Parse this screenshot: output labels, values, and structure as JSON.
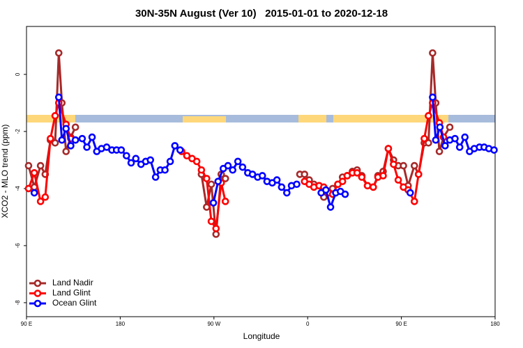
{
  "chart_data": {
    "type": "line",
    "title": "30N-35N August (Ver 10)   2015-01-01 to 2020-12-18",
    "x_label": "Longitude",
    "y_label": "XCO2 - MLO trend (ppm)",
    "xlim": [
      90,
      540
    ],
    "ylim": [
      -8.49,
      1.68
    ],
    "xticks": [
      {
        "value": 90,
        "label": "90 E"
      },
      {
        "value": 180,
        "label": "180"
      },
      {
        "value": 270,
        "label": "90 W"
      },
      {
        "value": 360,
        "label": "0"
      },
      {
        "value": 450,
        "label": "90 E"
      },
      {
        "value": 540,
        "label": "180"
      }
    ],
    "yticks": [
      -8,
      -6,
      -4,
      -2,
      0
    ],
    "legend": "bottom-left",
    "series": [
      {
        "name": "Land Nadir",
        "color": "#a52a2a",
        "x": [
          92,
          97.5,
          103.5,
          108,
          113,
          117.5,
          121,
          124,
          128,
          132.5,
          137,
          200,
          258,
          263,
          267.5,
          272,
          277,
          281,
          320,
          352.5,
          357,
          361.5,
          366,
          371,
          375.5,
          380,
          384,
          389,
          393.5,
          398,
          403,
          407.5,
          412,
          417.5,
          423,
          427.5,
          432.5,
          437.5,
          442.5,
          447,
          452,
          456.5,
          462.5,
          466.5,
          472,
          476,
          480,
          483,
          486.5,
          490.5,
          496.5
        ],
        "values": [
          -3.2,
          -3.95,
          -3.2,
          -3.5,
          -2.3,
          -2.4,
          0.75,
          -1.0,
          -2.7,
          -2.2,
          -1.85,
          null,
          -3.5,
          -4.65,
          -3.85,
          -5.6,
          -3.5,
          -3.65,
          null,
          -3.5,
          -3.5,
          -3.7,
          -3.85,
          -3.9,
          -4.3,
          -4.1,
          -4.0,
          -3.85,
          -3.6,
          -3.55,
          -3.4,
          -3.35,
          -3.55,
          -3.9,
          -3.95,
          -3.55,
          -3.4,
          -2.6,
          -3.0,
          -3.2,
          -3.2,
          -3.9,
          -3.2,
          -3.5,
          -2.4,
          -2.4,
          0.75,
          -1.0,
          -2.7,
          -2.2,
          -1.85
        ]
      },
      {
        "name": "Land Glint",
        "color": "#ff0000",
        "x": [
          92,
          97.5,
          103.5,
          108,
          113,
          117.5,
          121,
          128,
          132.5,
          200,
          239,
          244,
          249,
          253.5,
          258,
          263,
          267.5,
          272,
          277,
          281,
          320,
          357,
          361.5,
          366,
          371,
          375.5,
          380,
          384,
          389,
          393.5,
          398,
          403,
          407.5,
          412,
          417.5,
          423,
          427.5,
          432.5,
          437.5,
          442.5,
          447,
          452,
          456.5,
          462.5,
          466.5,
          472,
          476,
          480,
          486.5,
          490.5
        ],
        "values": [
          -4.0,
          -3.45,
          -4.45,
          -4.3,
          -2.25,
          -1.45,
          -1.0,
          -1.75,
          -2.25,
          null,
          -2.7,
          -2.85,
          -2.95,
          -3.05,
          -3.35,
          -3.65,
          -5.15,
          -5.4,
          -3.8,
          -4.45,
          null,
          -3.75,
          -3.85,
          -3.95,
          -3.9,
          -3.95,
          -4.15,
          -4.2,
          -3.85,
          -3.75,
          -3.55,
          -3.45,
          -3.45,
          -3.6,
          -3.9,
          -3.95,
          -3.6,
          -3.55,
          -2.6,
          -3.15,
          -3.7,
          -3.95,
          -4.05,
          -4.45,
          -3.5,
          -2.25,
          -1.45,
          -1.0,
          -1.7,
          -2.2
        ]
      },
      {
        "name": "Ocean Glint",
        "color": "#0000ff",
        "x": [
          97.5,
          110,
          121,
          124,
          128,
          132.5,
          137,
          143.5,
          148,
          153,
          157.5,
          162,
          167,
          172,
          176.5,
          181,
          186,
          190.5,
          195,
          200,
          204.5,
          209,
          214,
          218.5,
          223,
          228,
          232.5,
          237.5,
          255,
          269.5,
          274,
          279,
          283.5,
          288,
          293,
          297.5,
          302.5,
          307,
          312,
          316.5,
          321,
          326,
          330.5,
          335,
          340,
          344.5,
          349.5,
          360,
          373,
          377.5,
          382,
          387,
          391.5,
          396,
          420,
          458.5,
          470,
          480,
          483,
          487,
          492,
          496.5,
          501.5,
          506,
          511,
          515.5,
          520,
          525,
          529.5,
          534,
          539
        ],
        "values": [
          -4.15,
          null,
          -0.8,
          -2.3,
          -1.9,
          -2.5,
          -2.3,
          -2.25,
          -2.55,
          -2.2,
          -2.7,
          -2.6,
          -2.55,
          -2.65,
          -2.65,
          -2.65,
          -2.85,
          -3.1,
          -2.95,
          -3.15,
          -3.05,
          -3.0,
          -3.6,
          -3.35,
          -3.35,
          -3.05,
          -2.5,
          -2.65,
          null,
          -4.5,
          -3.75,
          -3.3,
          -3.2,
          -3.35,
          -3.05,
          -3.25,
          -3.45,
          -3.5,
          -3.6,
          -3.55,
          -3.75,
          -3.8,
          -3.7,
          -3.95,
          -4.15,
          -3.9,
          -3.85,
          null,
          -4.15,
          -4.05,
          -4.65,
          -4.15,
          -4.1,
          -4.2,
          null,
          -4.15,
          null,
          -0.8,
          -2.3,
          -1.85,
          -2.5,
          -2.3,
          -2.25,
          -2.55,
          -2.2,
          -2.7,
          -2.6,
          -2.55,
          -2.55,
          -2.6,
          -2.65
        ]
      }
    ]
  }
}
